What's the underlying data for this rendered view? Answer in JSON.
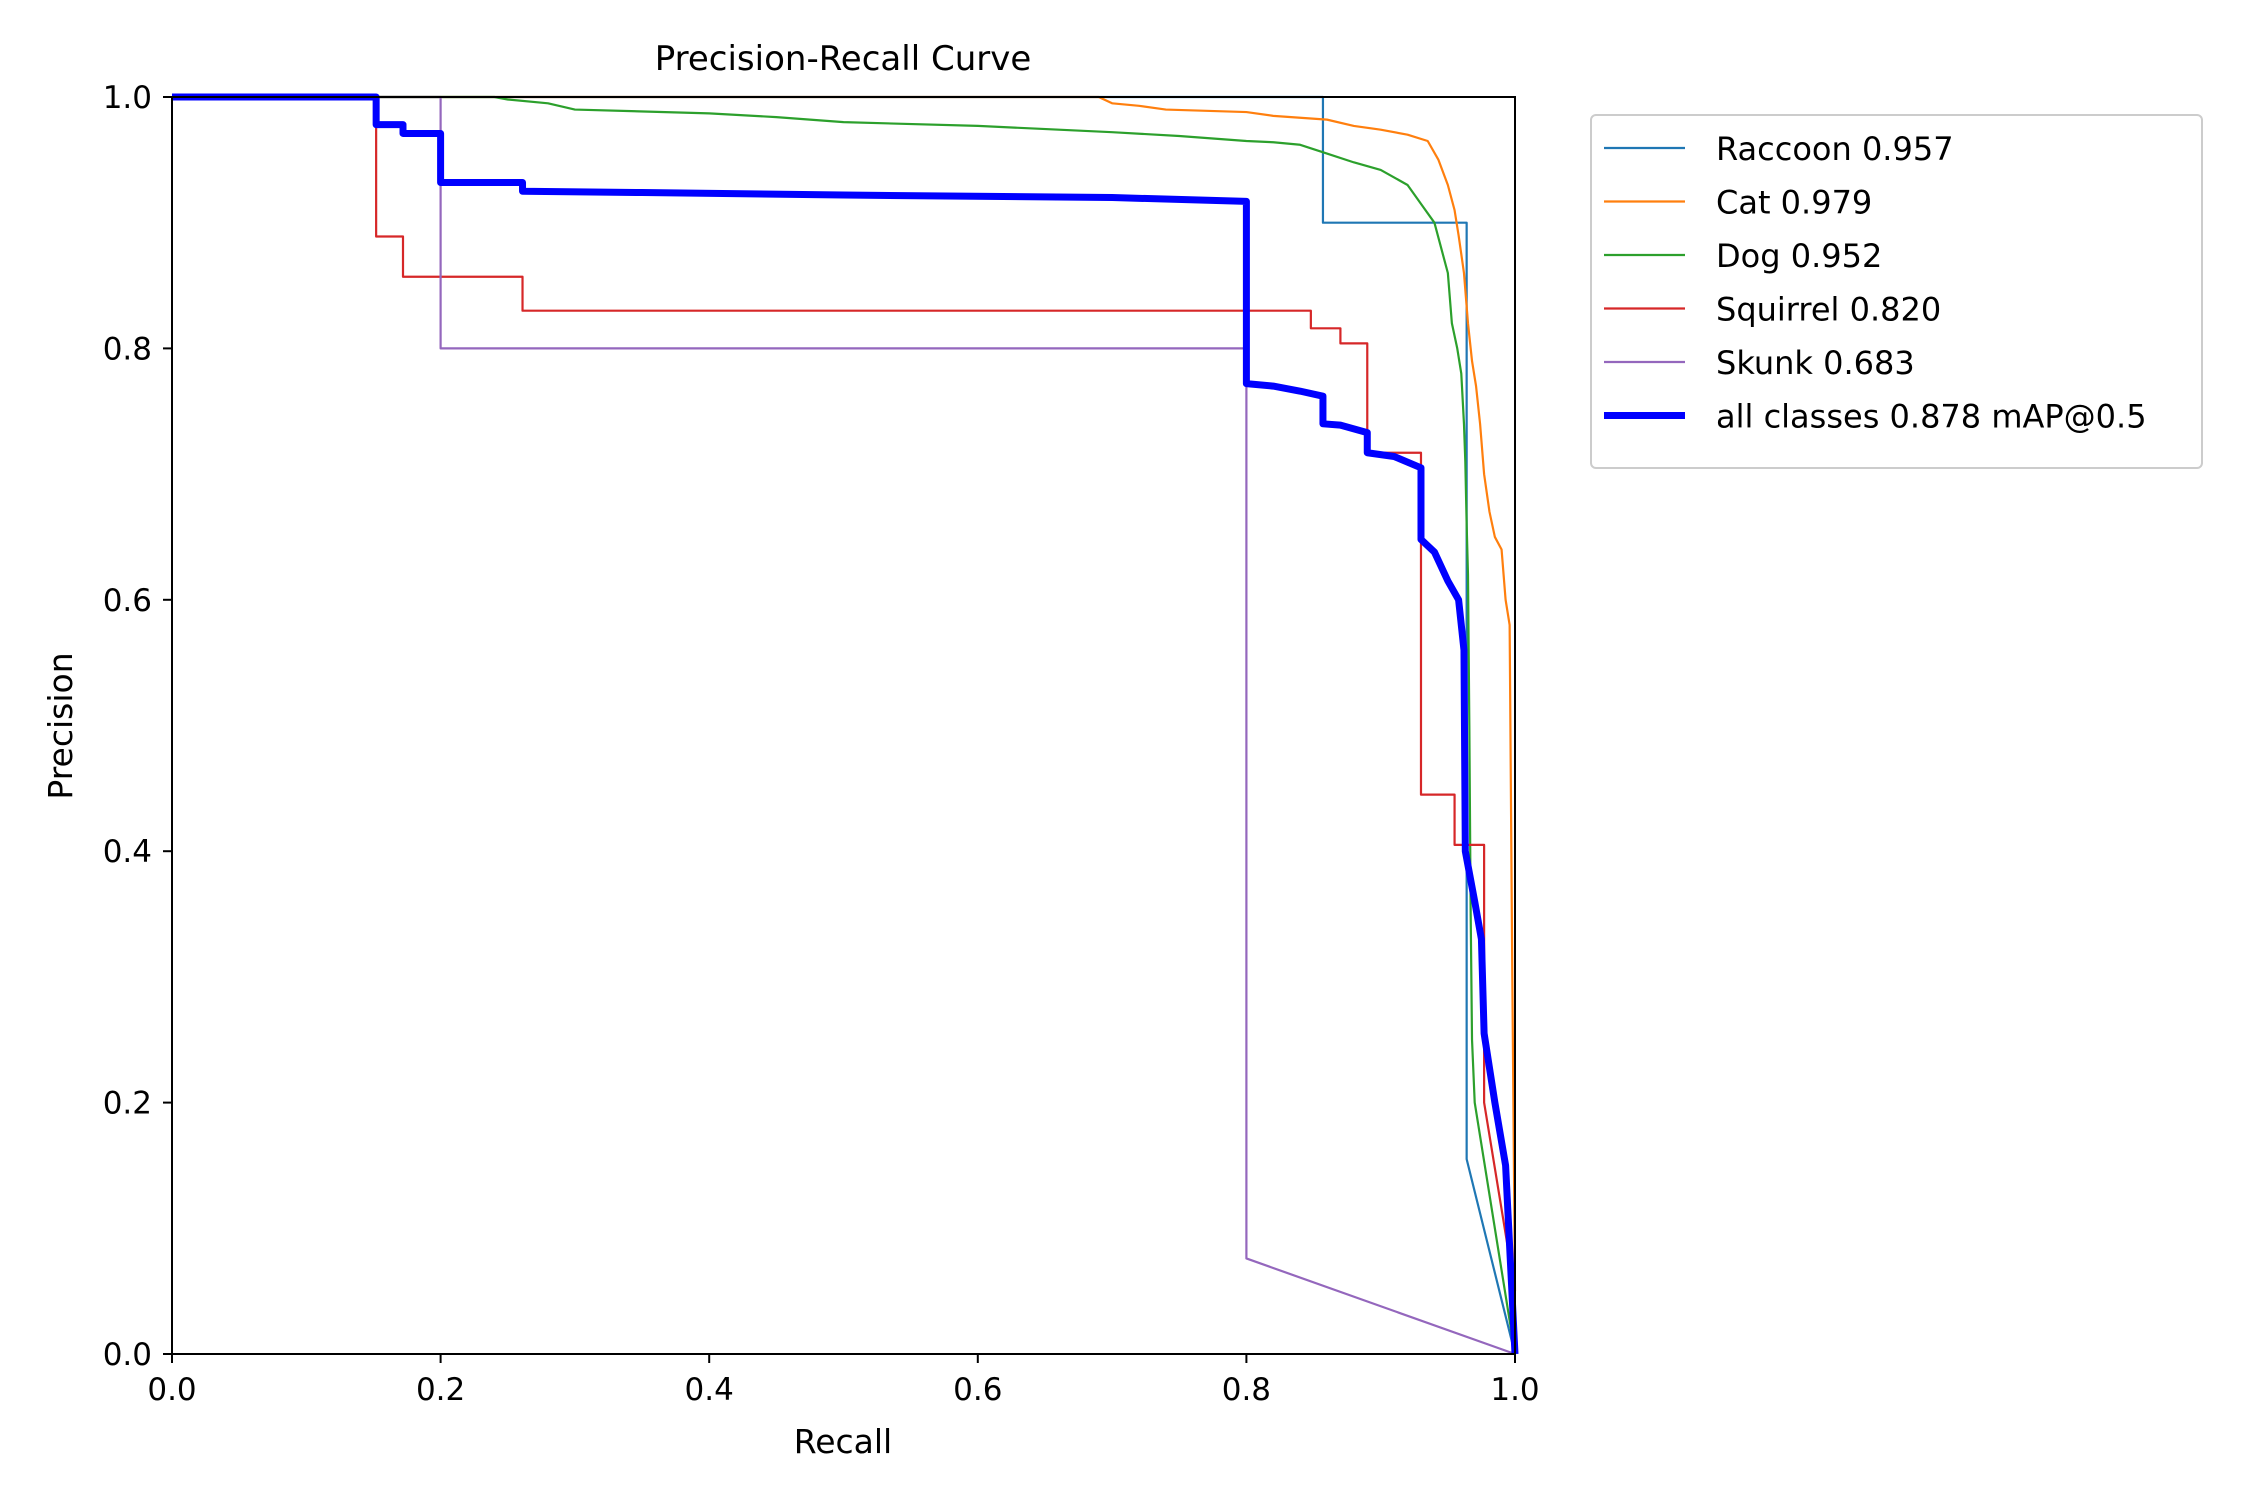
{
  "chart_data": {
    "type": "line",
    "title": "Precision-Recall Curve",
    "xlabel": "Recall",
    "ylabel": "Precision",
    "xlim": [
      0,
      1
    ],
    "ylim": [
      0,
      1
    ],
    "xticks": [
      "0.0",
      "0.2",
      "0.4",
      "0.6",
      "0.8",
      "1.0"
    ],
    "yticks": [
      "0.0",
      "0.2",
      "0.4",
      "0.6",
      "0.8",
      "1.0"
    ],
    "grid": false,
    "legend_position": "outside upper-right",
    "series": [
      {
        "name": "Raccoon 0.957",
        "color": "#1f77b4",
        "line_width": "thin",
        "points": [
          [
            0,
            1
          ],
          [
            0.857,
            1
          ],
          [
            0.857,
            0.9
          ],
          [
            0.964,
            0.9
          ],
          [
            0.964,
            0.155
          ],
          [
            1.0,
            0.0
          ]
        ]
      },
      {
        "name": "Cat 0.979",
        "color": "#ff7f0e",
        "line_width": "thin",
        "points": [
          [
            0,
            1
          ],
          [
            0.69,
            1
          ],
          [
            0.7,
            0.995
          ],
          [
            0.72,
            0.993
          ],
          [
            0.74,
            0.99
          ],
          [
            0.8,
            0.988
          ],
          [
            0.82,
            0.985
          ],
          [
            0.86,
            0.982
          ],
          [
            0.88,
            0.977
          ],
          [
            0.9,
            0.974
          ],
          [
            0.92,
            0.97
          ],
          [
            0.935,
            0.965
          ],
          [
            0.943,
            0.95
          ],
          [
            0.95,
            0.93
          ],
          [
            0.955,
            0.91
          ],
          [
            0.958,
            0.89
          ],
          [
            0.962,
            0.86
          ],
          [
            0.965,
            0.82
          ],
          [
            0.968,
            0.79
          ],
          [
            0.971,
            0.77
          ],
          [
            0.974,
            0.74
          ],
          [
            0.977,
            0.7
          ],
          [
            0.981,
            0.67
          ],
          [
            0.985,
            0.65
          ],
          [
            0.99,
            0.64
          ],
          [
            0.993,
            0.6
          ],
          [
            0.996,
            0.58
          ],
          [
            0.998,
            0.3
          ],
          [
            1.0,
            0.05
          ]
        ]
      },
      {
        "name": "Dog 0.952",
        "color": "#2ca02c",
        "line_width": "thin",
        "points": [
          [
            0,
            1
          ],
          [
            0.24,
            1
          ],
          [
            0.25,
            0.998
          ],
          [
            0.28,
            0.995
          ],
          [
            0.3,
            0.99
          ],
          [
            0.4,
            0.987
          ],
          [
            0.45,
            0.984
          ],
          [
            0.5,
            0.98
          ],
          [
            0.6,
            0.977
          ],
          [
            0.7,
            0.972
          ],
          [
            0.75,
            0.969
          ],
          [
            0.8,
            0.965
          ],
          [
            0.82,
            0.964
          ],
          [
            0.84,
            0.962
          ],
          [
            0.86,
            0.955
          ],
          [
            0.88,
            0.948
          ],
          [
            0.9,
            0.942
          ],
          [
            0.92,
            0.93
          ],
          [
            0.93,
            0.915
          ],
          [
            0.94,
            0.9
          ],
          [
            0.945,
            0.88
          ],
          [
            0.95,
            0.86
          ],
          [
            0.953,
            0.82
          ],
          [
            0.957,
            0.8
          ],
          [
            0.96,
            0.78
          ],
          [
            0.962,
            0.74
          ],
          [
            0.963,
            0.71
          ],
          [
            0.964,
            0.66
          ],
          [
            0.965,
            0.62
          ],
          [
            0.966,
            0.5
          ],
          [
            0.967,
            0.35
          ],
          [
            0.968,
            0.25
          ],
          [
            0.97,
            0.2
          ],
          [
            1.0,
            0.0
          ]
        ]
      },
      {
        "name": "Squirrel 0.820",
        "color": "#d62728",
        "line_width": "thin",
        "points": [
          [
            0,
            1
          ],
          [
            0.152,
            1
          ],
          [
            0.152,
            0.889
          ],
          [
            0.172,
            0.889
          ],
          [
            0.172,
            0.857
          ],
          [
            0.261,
            0.857
          ],
          [
            0.261,
            0.83
          ],
          [
            0.848,
            0.83
          ],
          [
            0.848,
            0.816
          ],
          [
            0.87,
            0.816
          ],
          [
            0.87,
            0.804
          ],
          [
            0.89,
            0.804
          ],
          [
            0.89,
            0.717
          ],
          [
            0.93,
            0.717
          ],
          [
            0.93,
            0.445
          ],
          [
            0.955,
            0.445
          ],
          [
            0.955,
            0.405
          ],
          [
            0.977,
            0.405
          ],
          [
            0.977,
            0.2
          ],
          [
            1.0,
            0.05
          ]
        ]
      },
      {
        "name": "Skunk 0.683",
        "color": "#9467bd",
        "line_width": "thin",
        "points": [
          [
            0,
            1
          ],
          [
            0.2,
            1
          ],
          [
            0.2,
            0.8
          ],
          [
            0.8,
            0.8
          ],
          [
            0.8,
            0.076
          ],
          [
            1.0,
            0.0
          ]
        ]
      },
      {
        "name": "all classes 0.878 mAP@0.5",
        "color": "#0000ff",
        "line_width": "thick",
        "points": [
          [
            0,
            1
          ],
          [
            0.152,
            1
          ],
          [
            0.152,
            0.978
          ],
          [
            0.172,
            0.978
          ],
          [
            0.172,
            0.971
          ],
          [
            0.2,
            0.971
          ],
          [
            0.2,
            0.932
          ],
          [
            0.261,
            0.932
          ],
          [
            0.261,
            0.925
          ],
          [
            0.35,
            0.924
          ],
          [
            0.5,
            0.922
          ],
          [
            0.7,
            0.92
          ],
          [
            0.8,
            0.917
          ],
          [
            0.8,
            0.772
          ],
          [
            0.82,
            0.77
          ],
          [
            0.84,
            0.766
          ],
          [
            0.857,
            0.762
          ],
          [
            0.857,
            0.74
          ],
          [
            0.87,
            0.739
          ],
          [
            0.89,
            0.733
          ],
          [
            0.89,
            0.717
          ],
          [
            0.91,
            0.714
          ],
          [
            0.93,
            0.705
          ],
          [
            0.93,
            0.648
          ],
          [
            0.94,
            0.638
          ],
          [
            0.95,
            0.615
          ],
          [
            0.958,
            0.6
          ],
          [
            0.962,
            0.56
          ],
          [
            0.963,
            0.4
          ],
          [
            0.97,
            0.36
          ],
          [
            0.975,
            0.33
          ],
          [
            0.977,
            0.255
          ],
          [
            0.985,
            0.2
          ],
          [
            0.993,
            0.15
          ],
          [
            1.0,
            0.0
          ]
        ]
      }
    ]
  }
}
